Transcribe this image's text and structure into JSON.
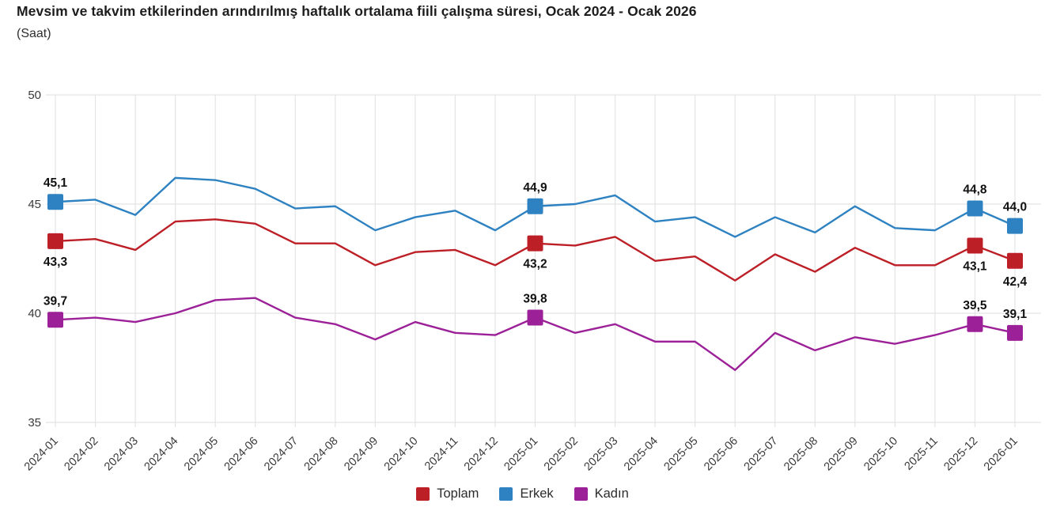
{
  "page": {
    "title": "Mevsim ve takvim etkilerinden arındırılmış haftalık ortalama fiili çalışma süresi, Ocak 2024 - Ocak 2026",
    "subtitle": "(Saat)"
  },
  "chart_data": {
    "type": "line",
    "title": "Mevsim ve takvim etkilerinden arındırılmış haftalık ortalama fiili çalışma süresi, Ocak 2024 - Ocak 2026",
    "subtitle_unit": "(Saat)",
    "categories": [
      "2024-01",
      "2024-02",
      "2024-03",
      "2024-04",
      "2024-05",
      "2024-06",
      "2024-07",
      "2024-08",
      "2024-09",
      "2024-10",
      "2024-11",
      "2024-12",
      "2025-01",
      "2025-02",
      "2025-03",
      "2025-04",
      "2025-05",
      "2025-06",
      "2025-07",
      "2025-08",
      "2025-09",
      "2025-10",
      "2025-11",
      "2025-12",
      "2026-01"
    ],
    "series": [
      {
        "name": "Toplam",
        "color": "#bd1f27",
        "label_position": "below",
        "values": [
          43.3,
          43.4,
          42.9,
          44.2,
          44.3,
          44.1,
          43.2,
          43.2,
          42.2,
          42.8,
          42.9,
          42.2,
          43.2,
          43.1,
          43.5,
          42.4,
          42.6,
          41.5,
          42.7,
          41.9,
          43.0,
          42.2,
          42.2,
          43.1,
          42.4
        ]
      },
      {
        "name": "Erkek",
        "color": "#2e82c2",
        "label_position": "above",
        "values": [
          45.1,
          45.2,
          44.5,
          46.2,
          46.1,
          45.7,
          44.8,
          44.9,
          43.8,
          44.4,
          44.7,
          43.8,
          44.9,
          45.0,
          45.4,
          44.2,
          44.4,
          43.5,
          44.4,
          43.7,
          44.9,
          43.9,
          43.8,
          44.8,
          44.0
        ]
      },
      {
        "name": "Kadın",
        "color": "#9c2098",
        "label_position": "above",
        "values": [
          39.7,
          39.8,
          39.6,
          40.0,
          40.6,
          40.7,
          39.8,
          39.5,
          38.8,
          39.6,
          39.1,
          39.0,
          39.8,
          39.1,
          39.5,
          38.7,
          38.7,
          37.4,
          39.1,
          38.3,
          38.9,
          38.6,
          39.0,
          39.5,
          39.1
        ]
      }
    ],
    "labeled_indices": [
      0,
      12,
      23,
      24
    ],
    "labeled_values": {
      "2024-01": {
        "Toplam": "43,3",
        "Erkek": "45,1",
        "Kadın": "39,7"
      },
      "2025-01": {
        "Toplam": "43,2",
        "Erkek": "44,9",
        "Kadın": "39,8"
      },
      "2025-12": {
        "Toplam": "43,1",
        "Erkek": "44,8",
        "Kadın": "39,5"
      },
      "2026-01": {
        "Toplam": "42,4",
        "Erkek": "44,0",
        "Kadın": "39,1"
      }
    },
    "ylim": [
      35,
      50
    ],
    "yticks": [
      50,
      45,
      40,
      35
    ],
    "decimal_separator": ",",
    "grid": true,
    "legend_position": "bottom",
    "colors": {
      "grid": "#e4e4e4",
      "tick_label": "#3a3a3a",
      "data_label": "#111111"
    }
  },
  "legend": {
    "items": [
      {
        "label": "Toplam"
      },
      {
        "label": "Erkek"
      },
      {
        "label": "Kadın"
      }
    ]
  }
}
